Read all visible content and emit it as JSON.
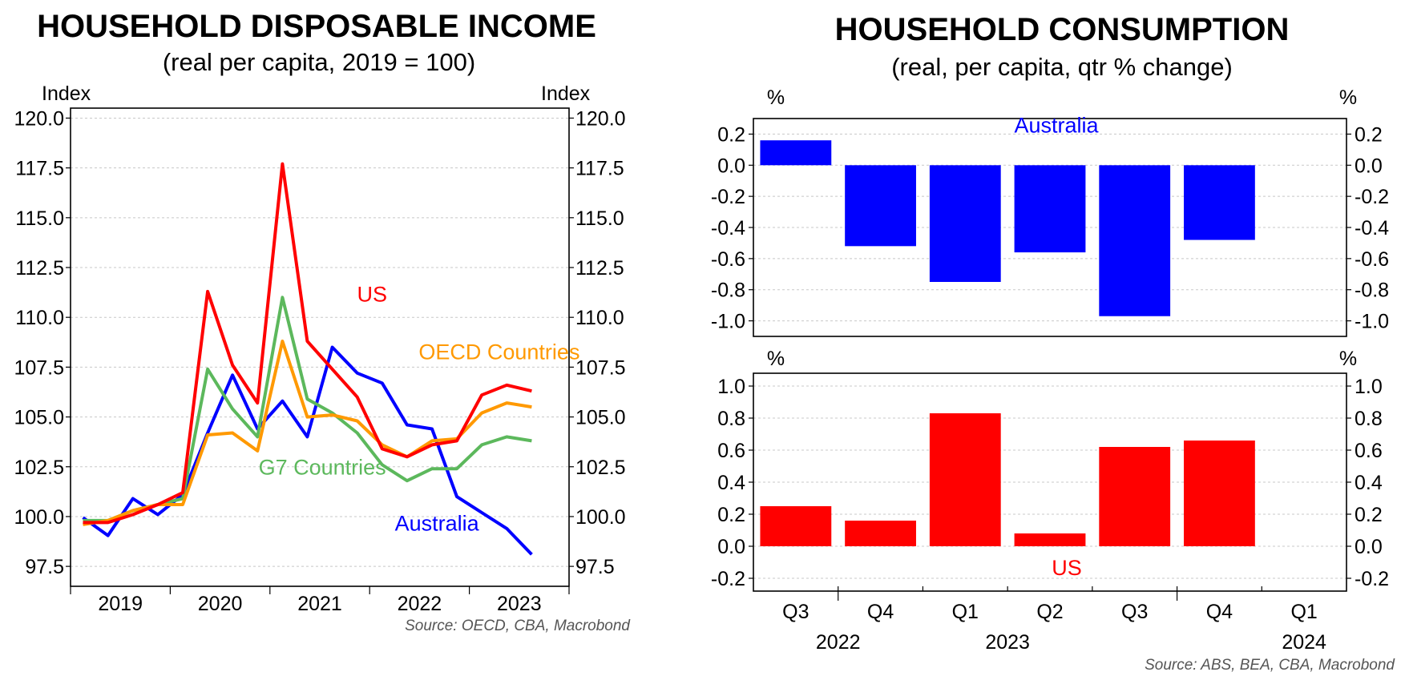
{
  "chart_data": [
    {
      "type": "line",
      "title": "HOUSEHOLD DISPOSABLE INCOME",
      "subtitle": "(real per capita, 2019 = 100)",
      "ylabel_left": "Index",
      "ylabel_right": "Index",
      "ylim": [
        96.5,
        120.5
      ],
      "yticks": [
        "120.0",
        "117.5",
        "115.0",
        "112.5",
        "110.0",
        "107.5",
        "105.0",
        "102.5",
        "100.0",
        "97.5"
      ],
      "ytick_values": [
        120,
        117.5,
        115,
        112.5,
        110,
        107.5,
        105,
        102.5,
        100,
        97.5
      ],
      "xlabels": [
        "2019",
        "2020",
        "2021",
        "2022",
        "2023"
      ],
      "x": [
        "2019-Q1",
        "2019-Q2",
        "2019-Q3",
        "2019-Q4",
        "2020-Q1",
        "2020-Q2",
        "2020-Q3",
        "2020-Q4",
        "2021-Q1",
        "2021-Q2",
        "2021-Q3",
        "2021-Q4",
        "2022-Q1",
        "2022-Q2",
        "2022-Q3",
        "2022-Q4",
        "2023-Q1",
        "2023-Q2",
        "2023-Q3"
      ],
      "series": [
        {
          "name": "Australia",
          "color": "#0000ff",
          "values": [
            99.95,
            99.05,
            100.9,
            100.1,
            101.1,
            104.2,
            107.1,
            104.4,
            105.8,
            104.0,
            108.5,
            107.2,
            106.7,
            104.6,
            104.4,
            101.0,
            100.2,
            99.4,
            98.1
          ]
        },
        {
          "name": "G7 Countries",
          "color": "#5cb85c",
          "values": [
            99.8,
            99.8,
            100.3,
            100.6,
            100.9,
            107.4,
            105.4,
            104.0,
            111.0,
            105.9,
            105.2,
            104.2,
            102.6,
            101.8,
            102.4,
            102.4,
            103.6,
            104.0,
            103.8
          ]
        },
        {
          "name": "OECD Countries",
          "color": "#ff9900",
          "values": [
            99.6,
            99.8,
            100.3,
            100.6,
            100.6,
            104.1,
            104.2,
            103.3,
            108.8,
            105.0,
            105.1,
            104.8,
            103.6,
            103.0,
            103.8,
            103.9,
            105.2,
            105.7,
            105.5
          ]
        },
        {
          "name": "US",
          "color": "#ff0000",
          "values": [
            99.7,
            99.7,
            100.1,
            100.6,
            101.2,
            111.3,
            107.6,
            105.7,
            117.7,
            108.8,
            107.4,
            106.0,
            103.4,
            103.0,
            103.6,
            103.8,
            106.1,
            106.6,
            106.3
          ]
        }
      ],
      "source": "Source: OECD, CBA, Macrobond"
    },
    {
      "type": "bar",
      "title": "HOUSEHOLD CONSUMPTION",
      "subtitle": "(real, per capita, qtr % change)",
      "unit_label": "%",
      "categories": [
        "Q3",
        "Q4",
        "Q1",
        "Q2",
        "Q3",
        "Q4",
        "Q1"
      ],
      "years": [
        "2022",
        "2023",
        "2024"
      ],
      "panels": [
        {
          "name": "Australia",
          "color": "#0000ff",
          "values": [
            0.16,
            -0.52,
            -0.75,
            -0.56,
            -0.97,
            -0.48,
            null
          ],
          "ylim": [
            -1.1,
            0.3
          ],
          "yticks": [
            "0.2",
            "0.0",
            "-0.2",
            "-0.4",
            "-0.6",
            "-0.8",
            "-1.0"
          ],
          "ytick_values": [
            0.2,
            0.0,
            -0.2,
            -0.4,
            -0.6,
            -0.8,
            -1.0
          ]
        },
        {
          "name": "US",
          "color": "#ff0000",
          "values": [
            0.25,
            0.16,
            0.83,
            0.08,
            0.62,
            0.66,
            null
          ],
          "ylim": [
            -0.28,
            1.08
          ],
          "yticks": [
            "1.0",
            "0.8",
            "0.6",
            "0.4",
            "0.2",
            "0.0",
            "-0.2"
          ],
          "ytick_values": [
            1.0,
            0.8,
            0.6,
            0.4,
            0.2,
            0.0,
            -0.2
          ]
        }
      ],
      "source": "Source: ABS, BEA, CBA, Macrobond"
    }
  ]
}
